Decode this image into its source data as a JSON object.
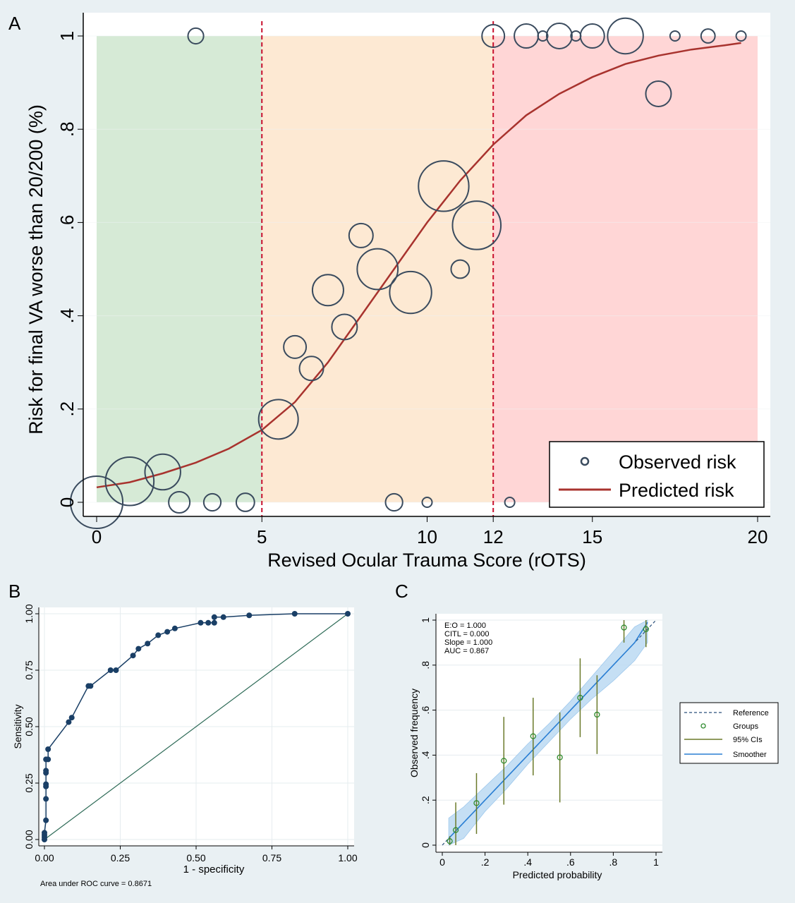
{
  "colors": {
    "background": "#e9f0f3",
    "zone_low": "#d6ead6",
    "zone_mid": "#fde9d3",
    "zone_high": "#ffd6d6",
    "bubble": "#3a4b5e",
    "predicted": "#a8332e",
    "cutoff": "#c8102e",
    "roc": "#1a3f66",
    "diagonal": "#2e6b57",
    "groups": "#2e8b2e",
    "ci": "#6b7a2a",
    "smoother": "#2a7fd4",
    "band": "#bcdaf3",
    "reference": "#2a4f7a"
  },
  "chart_data": [
    {
      "panel": "A",
      "type": "scatter",
      "xlabel": "Revised Ocular Trauma Score (rOTS)",
      "ylabel": "Risk for final VA worse than 20/200 (%)",
      "xlim": [
        0,
        20
      ],
      "ylim": [
        0,
        1
      ],
      "xticks": [
        "0",
        "5",
        "10",
        "12",
        "15",
        "20"
      ],
      "xtick_values": [
        0,
        5,
        10,
        12,
        15,
        20
      ],
      "yticks": [
        "0",
        ".2",
        ".4",
        ".6",
        ".8",
        "1"
      ],
      "ytick_values": [
        0,
        0.2,
        0.4,
        0.6,
        0.8,
        1
      ],
      "zones": [
        {
          "from": 0,
          "to": 5,
          "color": "zone_low"
        },
        {
          "from": 5,
          "to": 12,
          "color": "zone_mid"
        },
        {
          "from": 12,
          "to": 20,
          "color": "zone_high"
        }
      ],
      "cutoffs": [
        5,
        12
      ],
      "legend": {
        "placement": "bottom-right",
        "entries": [
          "Observed risk",
          "Predicted risk"
        ]
      },
      "observed": [
        {
          "x": 0,
          "y": 0,
          "size": 28
        },
        {
          "x": 1,
          "y": 0.045,
          "size": 24
        },
        {
          "x": 2,
          "y": 0.065,
          "size": 13
        },
        {
          "x": 2.5,
          "y": 0,
          "size": 4.6
        },
        {
          "x": 3.5,
          "y": 0,
          "size": 3
        },
        {
          "x": 4.5,
          "y": 0,
          "size": 3.4
        },
        {
          "x": 3,
          "y": 1,
          "size": 2.5
        },
        {
          "x": 5.5,
          "y": 0.178,
          "size": 16
        },
        {
          "x": 6,
          "y": 0.333,
          "size": 5.2
        },
        {
          "x": 6.5,
          "y": 0.287,
          "size": 5.9
        },
        {
          "x": 7,
          "y": 0.455,
          "size": 9.9
        },
        {
          "x": 7.5,
          "y": 0.376,
          "size": 6.6
        },
        {
          "x": 8,
          "y": 0.572,
          "size": 5.9
        },
        {
          "x": 8.5,
          "y": 0.5,
          "size": 17
        },
        {
          "x": 9.5,
          "y": 0.45,
          "size": 18
        },
        {
          "x": 9,
          "y": 0,
          "size": 3
        },
        {
          "x": 10,
          "y": 0,
          "size": 1
        },
        {
          "x": 10.5,
          "y": 0.678,
          "size": 26
        },
        {
          "x": 11,
          "y": 0.5,
          "size": 3.4
        },
        {
          "x": 11.5,
          "y": 0.594,
          "size": 24
        },
        {
          "x": 12,
          "y": 1,
          "size": 5.2
        },
        {
          "x": 12.5,
          "y": 0,
          "size": 1
        },
        {
          "x": 13,
          "y": 1,
          "size": 5.9
        },
        {
          "x": 13.5,
          "y": 1,
          "size": 1
        },
        {
          "x": 14,
          "y": 1,
          "size": 6.6
        },
        {
          "x": 14.5,
          "y": 1,
          "size": 1
        },
        {
          "x": 15,
          "y": 1,
          "size": 5.9
        },
        {
          "x": 16,
          "y": 1,
          "size": 13
        },
        {
          "x": 17,
          "y": 0.876,
          "size": 6.6
        },
        {
          "x": 17.5,
          "y": 1,
          "size": 1
        },
        {
          "x": 18.5,
          "y": 1,
          "size": 2
        },
        {
          "x": 19.5,
          "y": 1,
          "size": 1
        }
      ],
      "predicted": [
        [
          0,
          0.032
        ],
        [
          1,
          0.043
        ],
        [
          2,
          0.062
        ],
        [
          3,
          0.085
        ],
        [
          4,
          0.115
        ],
        [
          5,
          0.155
        ],
        [
          6,
          0.215
        ],
        [
          7,
          0.3
        ],
        [
          8,
          0.4
        ],
        [
          9,
          0.5
        ],
        [
          10,
          0.6
        ],
        [
          11,
          0.69
        ],
        [
          12,
          0.767
        ],
        [
          13,
          0.83
        ],
        [
          14,
          0.876
        ],
        [
          15,
          0.912
        ],
        [
          16,
          0.94
        ],
        [
          17,
          0.958
        ],
        [
          18,
          0.971
        ],
        [
          19,
          0.98
        ],
        [
          19.5,
          0.985
        ]
      ]
    },
    {
      "panel": "B",
      "type": "line",
      "xlabel": "1 - specificity",
      "ylabel": "Sensitivity",
      "xlim": [
        0,
        1
      ],
      "ylim": [
        0,
        1
      ],
      "xticks": [
        "0.00",
        "0.25",
        "0.50",
        "0.75",
        "1.00"
      ],
      "yticks": [
        "0.00",
        "0.25",
        "0.50",
        "0.75",
        "1.00"
      ],
      "tick_values": [
        0,
        0.25,
        0.5,
        0.75,
        1
      ],
      "grid": true,
      "note": "Area under ROC curve = 0.8671",
      "points": [
        [
          0,
          0
        ],
        [
          0,
          0.01
        ],
        [
          0,
          0.02
        ],
        [
          0,
          0.03
        ],
        [
          0.005,
          0.085
        ],
        [
          0.005,
          0.18
        ],
        [
          0.005,
          0.235
        ],
        [
          0.005,
          0.245
        ],
        [
          0.005,
          0.295
        ],
        [
          0.005,
          0.305
        ],
        [
          0.005,
          0.355
        ],
        [
          0.012,
          0.355
        ],
        [
          0.012,
          0.4
        ],
        [
          0.08,
          0.52
        ],
        [
          0.09,
          0.54
        ],
        [
          0.145,
          0.68
        ],
        [
          0.152,
          0.68
        ],
        [
          0.218,
          0.75
        ],
        [
          0.236,
          0.75
        ],
        [
          0.292,
          0.815
        ],
        [
          0.31,
          0.845
        ],
        [
          0.34,
          0.868
        ],
        [
          0.375,
          0.905
        ],
        [
          0.405,
          0.92
        ],
        [
          0.43,
          0.935
        ],
        [
          0.515,
          0.96
        ],
        [
          0.54,
          0.96
        ],
        [
          0.56,
          0.96
        ],
        [
          0.56,
          0.985
        ],
        [
          0.59,
          0.985
        ],
        [
          0.675,
          0.993
        ],
        [
          0.825,
          1
        ],
        [
          1,
          1
        ]
      ]
    },
    {
      "panel": "C",
      "type": "scatter",
      "xlabel": "Predicted probability",
      "ylabel": "Observed frequency",
      "xlim": [
        0,
        1
      ],
      "ylim": [
        0,
        1
      ],
      "xticks": [
        "0",
        ".2",
        ".4",
        ".6",
        ".8",
        "1"
      ],
      "yticks": [
        "0",
        ".2",
        ".4",
        ".6",
        ".8",
        "1"
      ],
      "tick_values": [
        0,
        0.2,
        0.4,
        0.6,
        0.8,
        1
      ],
      "grid": true,
      "stats": [
        "E:O = 1.000",
        "CITL = 0.000",
        "Slope = 1.000",
        "AUC = 0.867"
      ],
      "legend": {
        "placement": "right",
        "entries": [
          "Reference",
          "Groups",
          "95% CIs",
          "Smoother"
        ]
      },
      "groups": [
        {
          "x": 0.035,
          "y": 0.018,
          "lo": 0,
          "hi": 0.04
        },
        {
          "x": 0.063,
          "y": 0.067,
          "lo": 0,
          "hi": 0.19
        },
        {
          "x": 0.16,
          "y": 0.187,
          "lo": 0.05,
          "hi": 0.32
        },
        {
          "x": 0.288,
          "y": 0.375,
          "lo": 0.18,
          "hi": 0.57
        },
        {
          "x": 0.425,
          "y": 0.484,
          "lo": 0.31,
          "hi": 0.655
        },
        {
          "x": 0.55,
          "y": 0.39,
          "lo": 0.19,
          "hi": 0.59
        },
        {
          "x": 0.645,
          "y": 0.655,
          "lo": 0.48,
          "hi": 0.83
        },
        {
          "x": 0.724,
          "y": 0.58,
          "lo": 0.405,
          "hi": 0.755
        },
        {
          "x": 0.85,
          "y": 0.967,
          "lo": 0.9,
          "hi": 1
        },
        {
          "x": 0.953,
          "y": 0.96,
          "lo": 0.88,
          "hi": 1
        }
      ],
      "smoother": [
        {
          "x": 0.03,
          "y": 0.03,
          "lo": 0,
          "hi": 0.12
        },
        {
          "x": 0.1,
          "y": 0.1,
          "lo": 0.03,
          "hi": 0.17
        },
        {
          "x": 0.2,
          "y": 0.2,
          "lo": 0.15,
          "hi": 0.26
        },
        {
          "x": 0.3,
          "y": 0.3,
          "lo": 0.25,
          "hi": 0.35
        },
        {
          "x": 0.4,
          "y": 0.4,
          "lo": 0.36,
          "hi": 0.45
        },
        {
          "x": 0.5,
          "y": 0.5,
          "lo": 0.46,
          "hi": 0.54
        },
        {
          "x": 0.6,
          "y": 0.6,
          "lo": 0.56,
          "hi": 0.64
        },
        {
          "x": 0.7,
          "y": 0.7,
          "lo": 0.65,
          "hi": 0.75
        },
        {
          "x": 0.8,
          "y": 0.8,
          "lo": 0.73,
          "hi": 0.86
        },
        {
          "x": 0.9,
          "y": 0.9,
          "lo": 0.82,
          "hi": 0.97
        },
        {
          "x": 0.96,
          "y": 0.99,
          "lo": 0.9,
          "hi": 1
        }
      ]
    }
  ],
  "panel_labels": [
    "A",
    "B",
    "C"
  ]
}
